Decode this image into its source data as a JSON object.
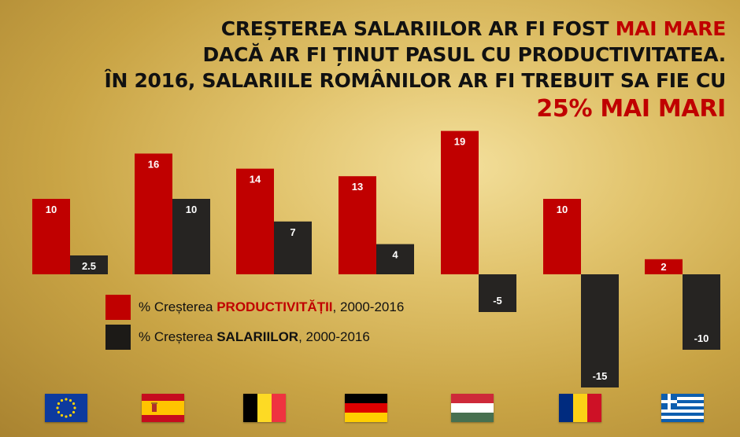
{
  "headline": {
    "line1_prefix": "CREȘTEREA SALARIILOR AR FI FOST ",
    "line1_highlight": "MAI MARE",
    "line2": "DACĂ AR FI ȚINUT PASUL CU PRODUCTIVITATEA.",
    "line3": "ÎN 2016, SALARIILE ROMÂNILOR AR FI TREBUIT SA FIE CU",
    "line4": "25% MAI MARI"
  },
  "colors": {
    "productivity": "#c00000",
    "salaries": "#262422",
    "headline_red": "#c00000"
  },
  "chart_data": {
    "type": "bar",
    "categories": [
      "EU",
      "Spain",
      "Belgium",
      "Germany",
      "Hungary",
      "Romania",
      "Greece"
    ],
    "series": [
      {
        "name": "% Creșterea PRODUCTIVITĂȚII, 2000-2016",
        "values": [
          10,
          16,
          14,
          13,
          19,
          10,
          2
        ],
        "labels": [
          "10",
          "16",
          "14",
          "13",
          "19",
          "10",
          "2"
        ]
      },
      {
        "name": "% Creșterea SALARIILOR, 2000-2016",
        "values": [
          2.5,
          10,
          7,
          4,
          -5,
          -15,
          -10
        ],
        "labels": [
          "2.5",
          "10",
          "7",
          "4",
          "-5",
          "-15",
          "-10"
        ]
      }
    ],
    "ylim": [
      -16,
      20
    ],
    "grid": false,
    "legend_position": "center-left"
  },
  "legend": [
    {
      "prefix": "% Creșterea ",
      "bold": "PRODUCTIVITĂȚII",
      "suffix": ", 2000-2016"
    },
    {
      "prefix": "% Creșterea ",
      "bold": "SALARIILOR",
      "suffix": ", 2000-2016"
    }
  ],
  "flags": [
    {
      "icon": "eu-flag-icon"
    },
    {
      "icon": "spain-flag-icon"
    },
    {
      "icon": "belgium-flag-icon"
    },
    {
      "icon": "germany-flag-icon"
    },
    {
      "icon": "hungary-flag-icon"
    },
    {
      "icon": "romania-flag-icon"
    },
    {
      "icon": "greece-flag-icon"
    }
  ]
}
